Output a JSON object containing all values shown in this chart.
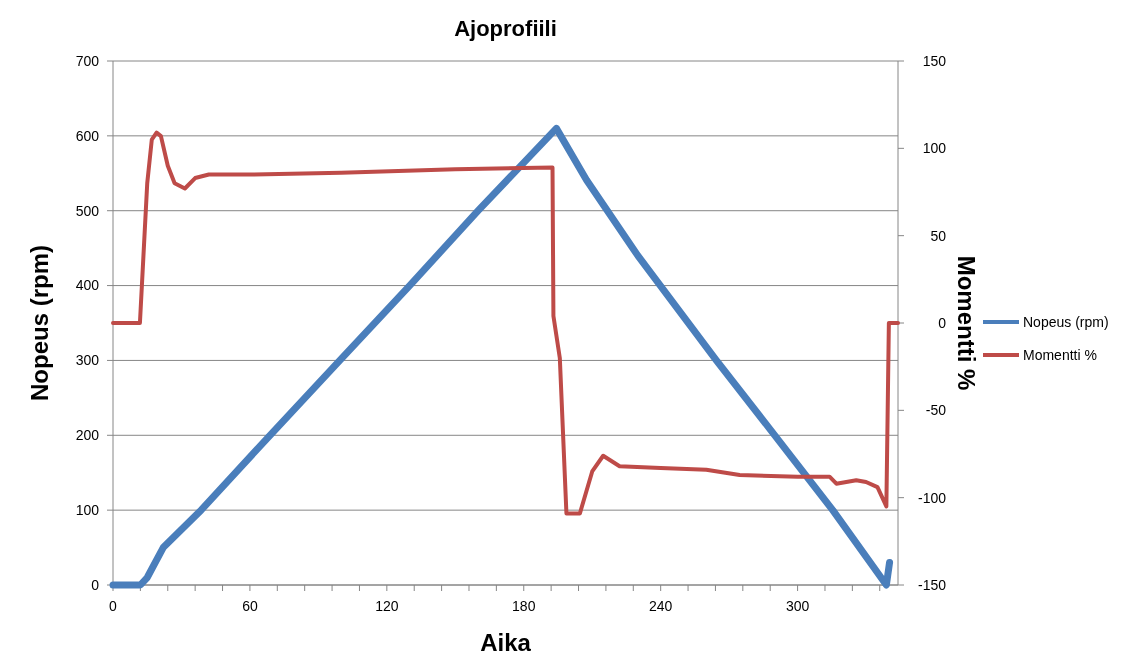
{
  "chart_data": {
    "type": "line",
    "title": "Ajoprofiili",
    "xlabel": "Aika",
    "ylabel": "Nopeus (rpm)",
    "y2label": "Momentti %",
    "xlim": [
      0,
      344
    ],
    "xticks": [
      0,
      {
        "value": 12,
        "label": null
      },
      {
        "value": 24,
        "label": null
      },
      {
        "value": 36,
        "label": null
      },
      {
        "value": 48,
        "label": null
      },
      60,
      {
        "value": 72,
        "label": null
      },
      {
        "value": 84,
        "label": null
      },
      {
        "value": 96,
        "label": null
      },
      {
        "value": 108,
        "label": null
      },
      120,
      {
        "value": 132,
        "label": null
      },
      {
        "value": 144,
        "label": null
      },
      {
        "value": 156,
        "label": null
      },
      {
        "value": 168,
        "label": null
      },
      180,
      {
        "value": 192,
        "label": null
      },
      {
        "value": 204,
        "label": null
      },
      {
        "value": 216,
        "label": null
      },
      {
        "value": 228,
        "label": null
      },
      240,
      {
        "value": 252,
        "label": null
      },
      {
        "value": 264,
        "label": null
      },
      {
        "value": 276,
        "label": null
      },
      {
        "value": 288,
        "label": null
      },
      300,
      {
        "value": 312,
        "label": null
      },
      {
        "value": 324,
        "label": null
      },
      {
        "value": 336,
        "label": null
      }
    ],
    "ylim": [
      0,
      700
    ],
    "yticks": [
      0,
      100,
      200,
      300,
      400,
      500,
      600,
      700
    ],
    "y2lim": [
      -150,
      150
    ],
    "y2ticks": [
      -150,
      -100,
      -50,
      0,
      50,
      100,
      150
    ],
    "grid": "y",
    "legend": "right",
    "marker": "none",
    "line_style": "solid",
    "series": [
      {
        "name": "Nopeus (rpm)",
        "color": "#4a7ebb",
        "x": [
          0,
          12,
          15,
          22,
          38.6,
          68.8,
          99.4,
          130,
          160,
          194.3,
          207.5,
          230,
          264.4,
          290,
          315.4,
          338.9,
          340.3
        ],
        "values": [
          0,
          0,
          10,
          50,
          100,
          200,
          300,
          400,
          500,
          610,
          541,
          440,
          300,
          200,
          100,
          0,
          30
        ]
      },
      {
        "name": "Momentti %",
        "color": "#be4b48",
        "axis": "y2",
        "x": [
          0,
          11.8,
          13,
          15,
          17,
          19.1,
          21,
          24,
          27,
          31.5,
          36,
          42,
          60,
          100,
          150,
          192.6,
          193,
          195.8,
          198.7,
          204.6,
          210,
          214.8,
          222,
          240,
          260,
          274.6,
          300,
          314,
          317,
          325.7,
          330,
          335,
          338.9,
          340,
          344
        ],
        "values": [
          0,
          0,
          30,
          80,
          105,
          109,
          107,
          90,
          80,
          77,
          83,
          85,
          85,
          86,
          88,
          89,
          4,
          -20,
          -109,
          -109,
          -85,
          -76,
          -82,
          -83,
          -84,
          -87,
          -88,
          -88,
          -92,
          -90,
          -91,
          -94,
          -105,
          0,
          0
        ]
      }
    ]
  }
}
